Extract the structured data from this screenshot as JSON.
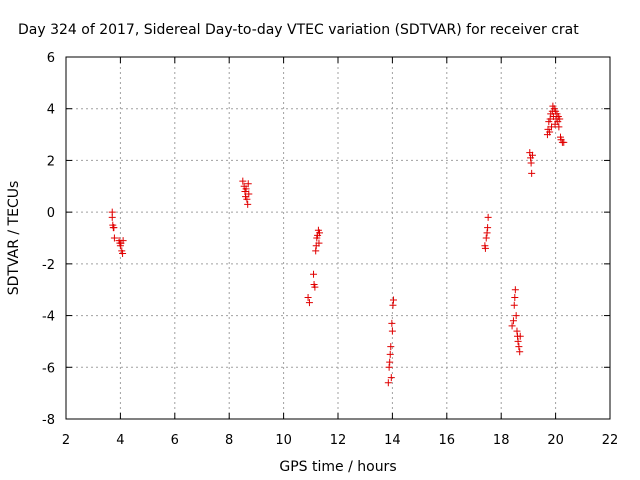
{
  "chart_data": {
    "type": "scatter",
    "title": "Day 324 of 2017, Sidereal Day-to-day VTEC variation (SDTVAR) for receiver crat",
    "xlabel": "GPS time / hours",
    "ylabel": "SDTVAR / TECUs",
    "xlim": [
      2,
      22
    ],
    "ylim": [
      -8,
      6
    ],
    "xticks": [
      2,
      4,
      6,
      8,
      10,
      12,
      14,
      16,
      18,
      20,
      22
    ],
    "yticks": [
      -8,
      -6,
      -4,
      -2,
      0,
      2,
      4,
      6
    ],
    "grid": true,
    "marker": "+",
    "marker_color": "#e00000",
    "series": [
      {
        "name": "SDTVAR",
        "points": [
          [
            3.7,
            0.0
          ],
          [
            3.7,
            -0.2
          ],
          [
            3.72,
            -0.5
          ],
          [
            3.74,
            -0.6
          ],
          [
            3.76,
            -0.6
          ],
          [
            3.78,
            -1.0
          ],
          [
            3.95,
            -1.1
          ],
          [
            3.98,
            -1.2
          ],
          [
            4.0,
            -1.3
          ],
          [
            4.02,
            -1.2
          ],
          [
            4.05,
            -1.5
          ],
          [
            4.08,
            -1.6
          ],
          [
            4.1,
            -1.1
          ],
          [
            8.5,
            1.2
          ],
          [
            8.55,
            1.0
          ],
          [
            8.58,
            0.8
          ],
          [
            8.6,
            0.6
          ],
          [
            8.62,
            0.9
          ],
          [
            8.65,
            0.5
          ],
          [
            8.68,
            0.3
          ],
          [
            8.7,
            1.1
          ],
          [
            8.72,
            0.7
          ],
          [
            10.9,
            -3.3
          ],
          [
            10.95,
            -3.5
          ],
          [
            11.1,
            -2.4
          ],
          [
            11.12,
            -2.8
          ],
          [
            11.15,
            -2.9
          ],
          [
            11.18,
            -1.5
          ],
          [
            11.2,
            -1.3
          ],
          [
            11.22,
            -1.0
          ],
          [
            11.25,
            -0.9
          ],
          [
            11.28,
            -0.7
          ],
          [
            11.3,
            -1.2
          ],
          [
            11.32,
            -0.8
          ],
          [
            13.85,
            -6.6
          ],
          [
            13.88,
            -6.0
          ],
          [
            13.9,
            -5.8
          ],
          [
            13.92,
            -5.5
          ],
          [
            13.94,
            -5.2
          ],
          [
            13.96,
            -6.4
          ],
          [
            13.98,
            -4.3
          ],
          [
            14.0,
            -4.6
          ],
          [
            14.02,
            -3.6
          ],
          [
            14.04,
            -3.4
          ],
          [
            17.4,
            -1.3
          ],
          [
            17.42,
            -1.4
          ],
          [
            17.45,
            -1.0
          ],
          [
            17.48,
            -0.8
          ],
          [
            17.5,
            -0.6
          ],
          [
            17.52,
            -0.2
          ],
          [
            18.4,
            -4.4
          ],
          [
            18.45,
            -4.2
          ],
          [
            18.48,
            -3.6
          ],
          [
            18.5,
            -3.3
          ],
          [
            18.52,
            -3.0
          ],
          [
            18.55,
            -4.0
          ],
          [
            18.58,
            -4.6
          ],
          [
            18.6,
            -4.8
          ],
          [
            18.62,
            -5.0
          ],
          [
            18.65,
            -5.2
          ],
          [
            18.68,
            -5.4
          ],
          [
            18.7,
            -4.8
          ],
          [
            19.05,
            2.3
          ],
          [
            19.08,
            2.1
          ],
          [
            19.1,
            1.9
          ],
          [
            19.12,
            1.5
          ],
          [
            19.15,
            2.2
          ],
          [
            19.7,
            3.0
          ],
          [
            19.72,
            3.2
          ],
          [
            19.75,
            3.5
          ],
          [
            19.78,
            3.1
          ],
          [
            19.8,
            3.6
          ],
          [
            19.82,
            3.8
          ],
          [
            19.85,
            3.3
          ],
          [
            19.88,
            3.9
          ],
          [
            19.9,
            4.1
          ],
          [
            19.92,
            3.7
          ],
          [
            19.95,
            4.0
          ],
          [
            19.98,
            3.4
          ],
          [
            20.0,
            3.9
          ],
          [
            20.02,
            3.6
          ],
          [
            20.05,
            3.8
          ],
          [
            20.08,
            3.5
          ],
          [
            20.1,
            3.7
          ],
          [
            20.12,
            3.3
          ],
          [
            20.15,
            3.6
          ],
          [
            20.18,
            2.9
          ],
          [
            20.2,
            2.8
          ],
          [
            20.25,
            2.7
          ],
          [
            20.3,
            2.7
          ]
        ]
      }
    ]
  }
}
